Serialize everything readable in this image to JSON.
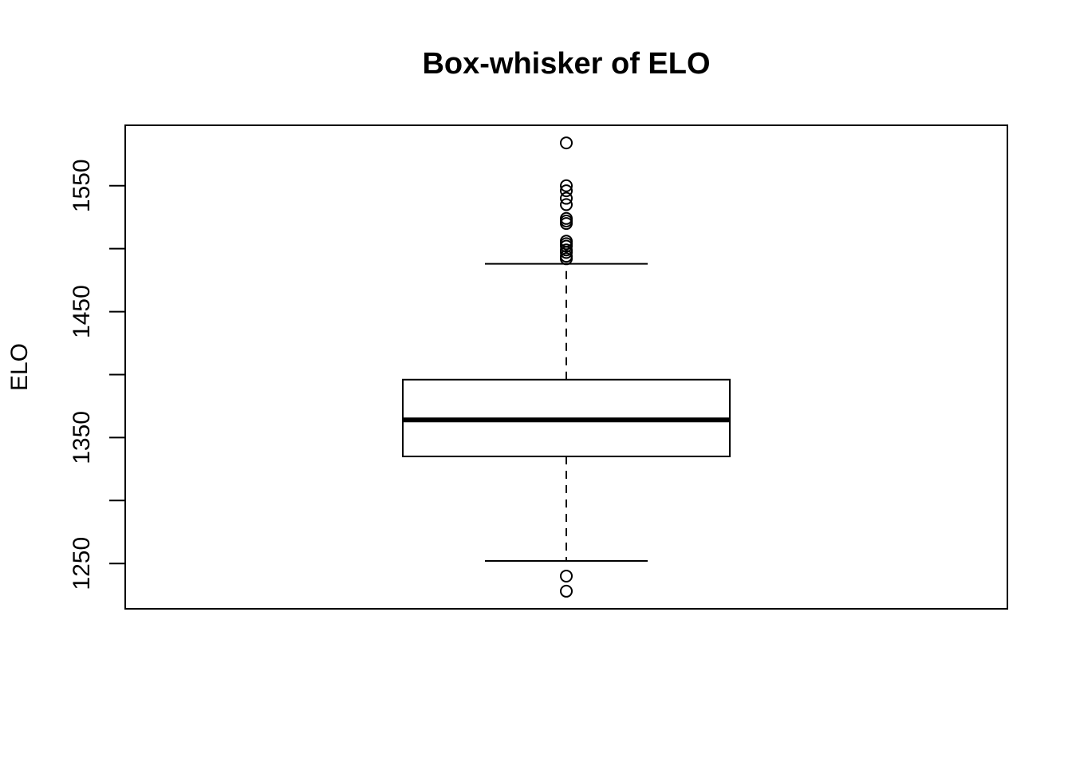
{
  "chart_data": {
    "type": "box",
    "title": "Box-whisker of ELO",
    "xlabel": "",
    "ylabel": "ELO",
    "ylim": [
      1214,
      1598
    ],
    "yticks": [
      1250,
      1300,
      1350,
      1400,
      1450,
      1500,
      1550
    ],
    "ytick_labels": [
      "1250",
      "",
      "1350",
      "",
      "1450",
      "",
      "1550"
    ],
    "grid": false,
    "box": {
      "whisker_low": 1252,
      "q1": 1335,
      "median": 1364,
      "q3": 1396,
      "whisker_high": 1488
    },
    "outliers": [
      1584,
      1550,
      1546,
      1540,
      1535,
      1524,
      1522,
      1520,
      1506,
      1504,
      1502,
      1499,
      1497,
      1494,
      1492,
      1240,
      1228
    ]
  }
}
